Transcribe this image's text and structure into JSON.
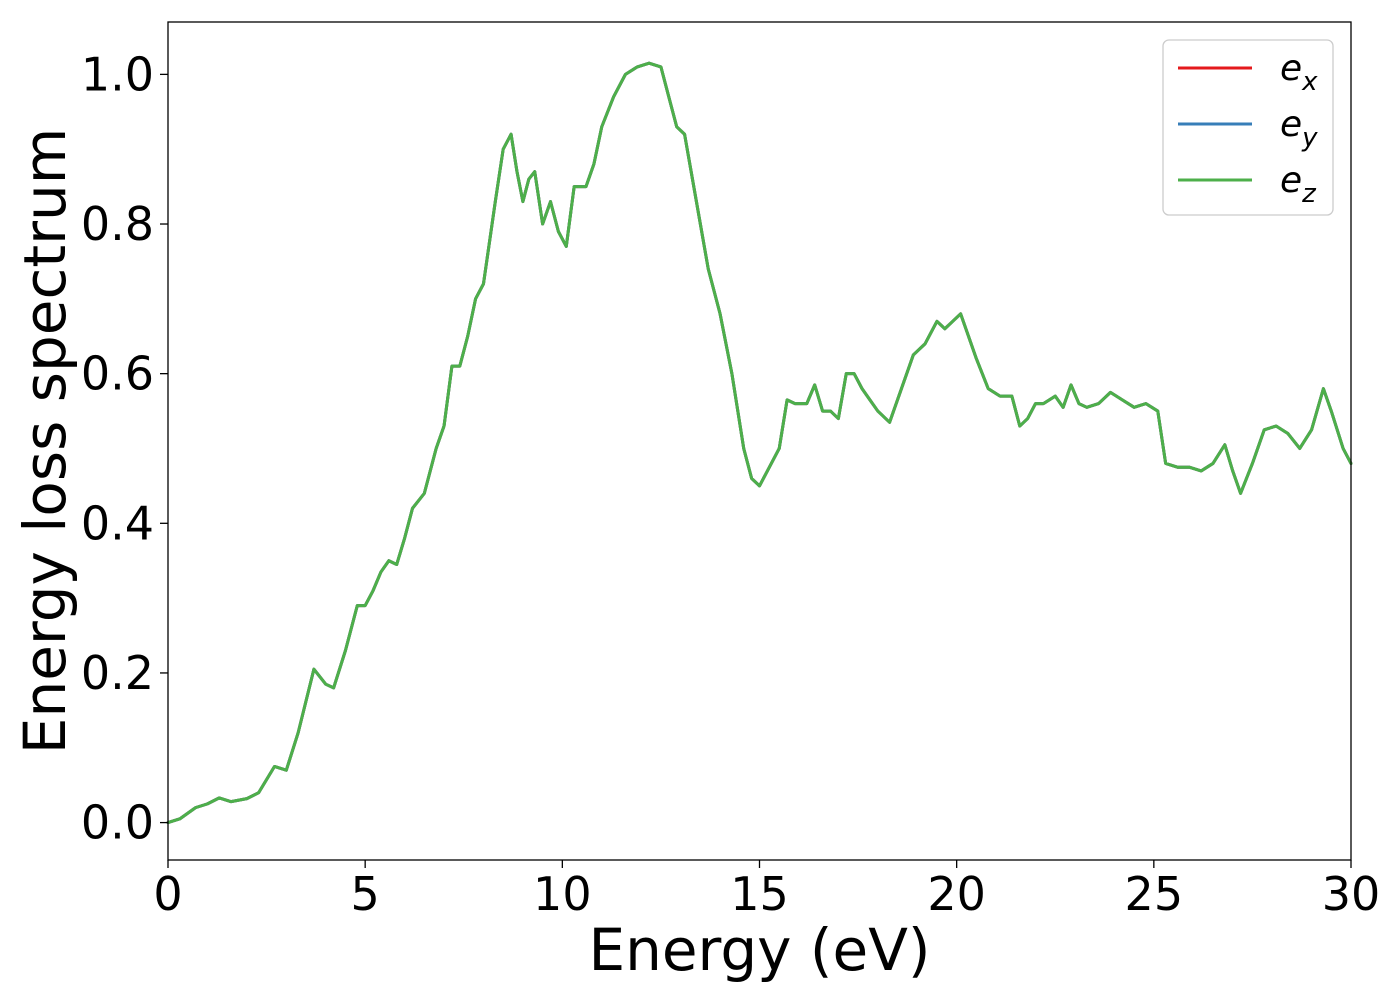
{
  "chart_data": {
    "type": "line",
    "title": "",
    "xlabel": "Energy (eV)",
    "ylabel": "Energy loss spectrum",
    "xlim": [
      0,
      30
    ],
    "ylim": [
      -0.05,
      1.07
    ],
    "xticks": [
      0,
      5,
      10,
      15,
      20,
      25,
      30
    ],
    "xtick_labels": [
      "0",
      "5",
      "10",
      "15",
      "20",
      "25",
      "30"
    ],
    "yticks": [
      0.0,
      0.2,
      0.4,
      0.6,
      0.8,
      1.0
    ],
    "ytick_labels": [
      "0.0",
      "0.2",
      "0.4",
      "0.6",
      "0.8",
      "1.0"
    ],
    "grid": false,
    "legend_position": "top-right",
    "x": [
      0,
      0.3,
      0.7,
      1.0,
      1.3,
      1.6,
      2.0,
      2.3,
      2.7,
      3.0,
      3.3,
      3.7,
      4.0,
      4.2,
      4.5,
      4.8,
      5.0,
      5.2,
      5.4,
      5.6,
      5.8,
      6.0,
      6.2,
      6.5,
      6.8,
      7.0,
      7.2,
      7.4,
      7.6,
      7.8,
      8.0,
      8.3,
      8.5,
      8.7,
      8.85,
      9.0,
      9.15,
      9.3,
      9.5,
      9.7,
      9.9,
      10.1,
      10.3,
      10.6,
      10.8,
      11.0,
      11.3,
      11.6,
      11.9,
      12.2,
      12.5,
      12.7,
      12.9,
      13.1,
      13.4,
      13.7,
      14.0,
      14.3,
      14.6,
      14.8,
      15.0,
      15.2,
      15.5,
      15.7,
      15.9,
      16.2,
      16.4,
      16.6,
      16.8,
      17.0,
      17.2,
      17.4,
      17.6,
      17.8,
      18.0,
      18.3,
      18.6,
      18.9,
      19.2,
      19.5,
      19.7,
      19.9,
      20.1,
      20.3,
      20.5,
      20.8,
      21.1,
      21.4,
      21.6,
      21.8,
      22.0,
      22.2,
      22.5,
      22.7,
      22.9,
      23.1,
      23.3,
      23.6,
      23.9,
      24.2,
      24.5,
      24.8,
      25.1,
      25.3,
      25.6,
      25.9,
      26.2,
      26.5,
      26.8,
      27.0,
      27.2,
      27.5,
      27.8,
      28.1,
      28.4,
      28.7,
      29.0,
      29.3,
      29.5,
      29.8,
      30.0
    ],
    "series": [
      {
        "name": "e_x",
        "color": "#e41a1c",
        "values": [
          0.0,
          0.005,
          0.02,
          0.025,
          0.033,
          0.028,
          0.032,
          0.04,
          0.075,
          0.07,
          0.12,
          0.205,
          0.185,
          0.18,
          0.23,
          0.29,
          0.29,
          0.31,
          0.335,
          0.35,
          0.345,
          0.38,
          0.42,
          0.44,
          0.5,
          0.53,
          0.61,
          0.61,
          0.65,
          0.7,
          0.72,
          0.83,
          0.9,
          0.92,
          0.87,
          0.83,
          0.86,
          0.87,
          0.8,
          0.83,
          0.79,
          0.77,
          0.85,
          0.85,
          0.88,
          0.93,
          0.97,
          1.0,
          1.01,
          1.015,
          1.01,
          0.97,
          0.93,
          0.92,
          0.83,
          0.74,
          0.68,
          0.6,
          0.5,
          0.46,
          0.45,
          0.47,
          0.5,
          0.565,
          0.56,
          0.56,
          0.585,
          0.55,
          0.55,
          0.54,
          0.6,
          0.6,
          0.58,
          0.565,
          0.55,
          0.535,
          0.58,
          0.625,
          0.64,
          0.67,
          0.66,
          0.67,
          0.68,
          0.65,
          0.62,
          0.58,
          0.57,
          0.57,
          0.53,
          0.54,
          0.56,
          0.56,
          0.57,
          0.555,
          0.585,
          0.56,
          0.555,
          0.56,
          0.575,
          0.565,
          0.555,
          0.56,
          0.55,
          0.48,
          0.475,
          0.475,
          0.47,
          0.48,
          0.505,
          0.47,
          0.44,
          0.48,
          0.525,
          0.53,
          0.52,
          0.5,
          0.525,
          0.58,
          0.55,
          0.5,
          0.48
        ]
      },
      {
        "name": "e_y",
        "color": "#377eb8",
        "values": [
          0.0,
          0.005,
          0.02,
          0.025,
          0.033,
          0.028,
          0.032,
          0.04,
          0.075,
          0.07,
          0.12,
          0.205,
          0.185,
          0.18,
          0.23,
          0.29,
          0.29,
          0.31,
          0.335,
          0.35,
          0.345,
          0.38,
          0.42,
          0.44,
          0.5,
          0.53,
          0.61,
          0.61,
          0.65,
          0.7,
          0.72,
          0.83,
          0.9,
          0.92,
          0.87,
          0.83,
          0.86,
          0.87,
          0.8,
          0.83,
          0.79,
          0.77,
          0.85,
          0.85,
          0.88,
          0.93,
          0.97,
          1.0,
          1.01,
          1.015,
          1.01,
          0.97,
          0.93,
          0.92,
          0.83,
          0.74,
          0.68,
          0.6,
          0.5,
          0.46,
          0.45,
          0.47,
          0.5,
          0.565,
          0.56,
          0.56,
          0.585,
          0.55,
          0.55,
          0.54,
          0.6,
          0.6,
          0.58,
          0.565,
          0.55,
          0.535,
          0.58,
          0.625,
          0.64,
          0.67,
          0.66,
          0.67,
          0.68,
          0.65,
          0.62,
          0.58,
          0.57,
          0.57,
          0.53,
          0.54,
          0.56,
          0.56,
          0.57,
          0.555,
          0.585,
          0.56,
          0.555,
          0.56,
          0.575,
          0.565,
          0.555,
          0.56,
          0.55,
          0.48,
          0.475,
          0.475,
          0.47,
          0.48,
          0.505,
          0.47,
          0.44,
          0.48,
          0.525,
          0.53,
          0.52,
          0.5,
          0.525,
          0.58,
          0.55,
          0.5,
          0.48
        ]
      },
      {
        "name": "e_z",
        "color": "#4daf4a",
        "values": [
          0.0,
          0.005,
          0.02,
          0.025,
          0.033,
          0.028,
          0.032,
          0.04,
          0.075,
          0.07,
          0.12,
          0.205,
          0.185,
          0.18,
          0.23,
          0.29,
          0.29,
          0.31,
          0.335,
          0.35,
          0.345,
          0.38,
          0.42,
          0.44,
          0.5,
          0.53,
          0.61,
          0.61,
          0.65,
          0.7,
          0.72,
          0.83,
          0.9,
          0.92,
          0.87,
          0.83,
          0.86,
          0.87,
          0.8,
          0.83,
          0.79,
          0.77,
          0.85,
          0.85,
          0.88,
          0.93,
          0.97,
          1.0,
          1.01,
          1.015,
          1.01,
          0.97,
          0.93,
          0.92,
          0.83,
          0.74,
          0.68,
          0.6,
          0.5,
          0.46,
          0.45,
          0.47,
          0.5,
          0.565,
          0.56,
          0.56,
          0.585,
          0.55,
          0.55,
          0.54,
          0.6,
          0.6,
          0.58,
          0.565,
          0.55,
          0.535,
          0.58,
          0.625,
          0.64,
          0.67,
          0.66,
          0.67,
          0.68,
          0.65,
          0.62,
          0.58,
          0.57,
          0.57,
          0.53,
          0.54,
          0.56,
          0.56,
          0.57,
          0.555,
          0.585,
          0.56,
          0.555,
          0.56,
          0.575,
          0.565,
          0.555,
          0.56,
          0.55,
          0.48,
          0.475,
          0.475,
          0.47,
          0.48,
          0.505,
          0.47,
          0.44,
          0.48,
          0.525,
          0.53,
          0.52,
          0.5,
          0.525,
          0.58,
          0.55,
          0.5,
          0.48
        ]
      }
    ],
    "legend": [
      {
        "base": "e",
        "sub": "x",
        "color": "#e41a1c"
      },
      {
        "base": "e",
        "sub": "y",
        "color": "#377eb8"
      },
      {
        "base": "e",
        "sub": "z",
        "color": "#4daf4a"
      }
    ]
  }
}
